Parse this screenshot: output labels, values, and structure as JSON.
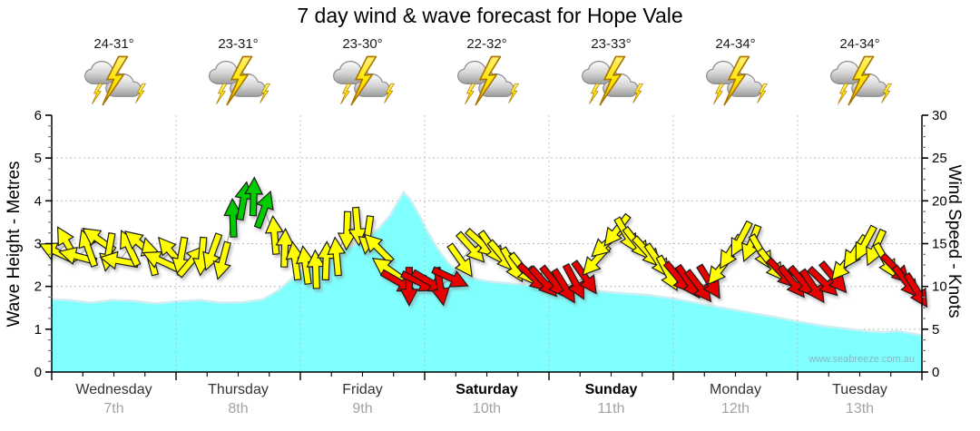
{
  "title": "7 day wind & wave forecast for Hope Vale",
  "watermark": "www.seabreeze.com.au",
  "days": [
    {
      "name": "Wednesday",
      "date": "7th",
      "temp": "24-31°",
      "icon": "thunderstorm",
      "weekend": false
    },
    {
      "name": "Thursday",
      "date": "8th",
      "temp": "23-31°",
      "icon": "thunderstorm",
      "weekend": false
    },
    {
      "name": "Friday",
      "date": "9th",
      "temp": "23-30°",
      "icon": "thunderstorm",
      "weekend": false
    },
    {
      "name": "Saturday",
      "date": "10th",
      "temp": "22-32°",
      "icon": "thunderstorm",
      "weekend": true
    },
    {
      "name": "Sunday",
      "date": "11th",
      "temp": "23-33°",
      "icon": "thunderstorm",
      "weekend": true
    },
    {
      "name": "Monday",
      "date": "12th",
      "temp": "24-34°",
      "icon": "thunderstorm",
      "weekend": false
    },
    {
      "name": "Tuesday",
      "date": "13th",
      "temp": "24-34°",
      "icon": "thunderstorm",
      "weekend": false
    }
  ],
  "chart_data": {
    "type": "area+wind-arrows",
    "title": "7 day wind & wave forecast for Hope Vale",
    "x_unit": "days (0 = Wednesday 7th 00:00, 7 = end of Tuesday 13th)",
    "grid": {
      "h_lines_metres": [
        1,
        2,
        3,
        4,
        5
      ],
      "v_lines_day_boundaries": [
        1,
        2,
        3,
        4,
        5,
        6
      ],
      "style": "dotted"
    },
    "left_axis": {
      "label": "Wave Height - Metres",
      "min": 0,
      "max": 6,
      "ticks": [
        0,
        1,
        2,
        3,
        4,
        5,
        6
      ],
      "minor_step": 0.25
    },
    "right_axis": {
      "label": "Wind Speed - Knots",
      "min": 0,
      "max": 30,
      "ticks": [
        0,
        5,
        10,
        15,
        20,
        25,
        30
      ],
      "minor_step": 1.25
    },
    "wave_series": {
      "name": "Wave Height (metres)",
      "points": [
        [
          0,
          1.7
        ],
        [
          0.14,
          1.68
        ],
        [
          0.315,
          1.62
        ],
        [
          0.49,
          1.68
        ],
        [
          0.665,
          1.66
        ],
        [
          0.84,
          1.6
        ],
        [
          1.0,
          1.65
        ],
        [
          1.19,
          1.68
        ],
        [
          1.365,
          1.62
        ],
        [
          1.54,
          1.63
        ],
        [
          1.7,
          1.7
        ],
        [
          1.82,
          1.9
        ],
        [
          1.9,
          2.1
        ],
        [
          2.0,
          2.35
        ],
        [
          2.1,
          2.6
        ],
        [
          2.2,
          2.75
        ],
        [
          2.31,
          2.85
        ],
        [
          2.42,
          2.95
        ],
        [
          2.52,
          3.1
        ],
        [
          2.63,
          3.35
        ],
        [
          2.72,
          3.65
        ],
        [
          2.77,
          3.9
        ],
        [
          2.83,
          4.2
        ],
        [
          2.88,
          4.05
        ],
        [
          2.95,
          3.7
        ],
        [
          3.02,
          3.3
        ],
        [
          3.1,
          2.9
        ],
        [
          3.19,
          2.55
        ],
        [
          3.28,
          2.32
        ],
        [
          3.38,
          2.2
        ],
        [
          3.5,
          2.12
        ],
        [
          3.71,
          2.06
        ],
        [
          4.0,
          2.0
        ],
        [
          4.27,
          1.92
        ],
        [
          4.55,
          1.85
        ],
        [
          4.8,
          1.8
        ],
        [
          5.0,
          1.72
        ],
        [
          5.25,
          1.58
        ],
        [
          5.46,
          1.47
        ],
        [
          5.67,
          1.36
        ],
        [
          5.88,
          1.25
        ],
        [
          6.0,
          1.18
        ],
        [
          6.2,
          1.08
        ],
        [
          6.37,
          1.02
        ],
        [
          6.55,
          0.96
        ],
        [
          6.69,
          0.93
        ],
        [
          6.8,
          0.96
        ],
        [
          6.92,
          0.9
        ],
        [
          7.0,
          0.86
        ]
      ]
    },
    "wind_series": {
      "name": "Wind Speed (knots) with direction arrows",
      "arrows_per_day": 12,
      "arrow_format": "[knots, rotation_deg_cw_from_east, color]",
      "days": [
        {
          "day": 0,
          "arrows": [
            [
              14,
              205,
              "y"
            ],
            [
              15,
              240,
              "y"
            ],
            [
              13.5,
              195,
              "y"
            ],
            [
              14.5,
              250,
              "y"
            ],
            [
              15.5,
              215,
              "y"
            ],
            [
              14,
              100,
              "y"
            ],
            [
              13,
              190,
              "y"
            ],
            [
              14.5,
              245,
              "y"
            ],
            [
              15,
              220,
              "y"
            ],
            [
              13.5,
              255,
              "y"
            ],
            [
              13,
              205,
              "y"
            ],
            [
              14,
              230,
              "y"
            ]
          ]
        },
        {
          "day": 1,
          "arrows": [
            [
              13.5,
              100,
              "y"
            ],
            [
              13,
              310,
              "y"
            ],
            [
              13.5,
              95,
              "y"
            ],
            [
              14,
              110,
              "y"
            ],
            [
              13,
              105,
              "y"
            ],
            [
              18,
              268,
              "g"
            ],
            [
              20,
              280,
              "g"
            ],
            [
              20.5,
              272,
              "g"
            ],
            [
              19,
              290,
              "g"
            ],
            [
              16,
              265,
              "y"
            ],
            [
              14.5,
              272,
              "y"
            ],
            [
              13,
              262,
              "y"
            ]
          ]
        },
        {
          "day": 2,
          "arrows": [
            [
              12.5,
              262,
              "y"
            ],
            [
              12,
              268,
              "y"
            ],
            [
              13,
              272,
              "y"
            ],
            [
              13.5,
              265,
              "y"
            ],
            [
              16.5,
              92,
              "y"
            ],
            [
              17,
              85,
              "y"
            ],
            [
              16,
              98,
              "y"
            ],
            [
              14.5,
              225,
              "y"
            ],
            [
              12,
              215,
              "y"
            ],
            [
              10.5,
              30,
              "r"
            ],
            [
              10,
              90,
              "r"
            ],
            [
              10.5,
              25,
              "r"
            ]
          ]
        },
        {
          "day": 3,
          "arrows": [
            [
              10.5,
              30,
              "r"
            ],
            [
              10,
              80,
              "r"
            ],
            [
              11,
              25,
              "r"
            ],
            [
              13,
              55,
              "y"
            ],
            [
              14.5,
              48,
              "y"
            ],
            [
              15,
              42,
              "y"
            ],
            [
              14.5,
              55,
              "y"
            ],
            [
              13.5,
              50,
              "y"
            ],
            [
              12.5,
              60,
              "y"
            ],
            [
              12,
              52,
              "y"
            ],
            [
              11,
              42,
              "r"
            ],
            [
              10.5,
              48,
              "r"
            ]
          ]
        },
        {
          "day": 4,
          "arrows": [
            [
              10.5,
              52,
              "r"
            ],
            [
              10,
              58,
              "r"
            ],
            [
              10.5,
              62,
              "r"
            ],
            [
              11,
              55,
              "r"
            ],
            [
              13,
              132,
              "y"
            ],
            [
              15,
              138,
              "y"
            ],
            [
              16.5,
              128,
              "y"
            ],
            [
              16,
              60,
              "y"
            ],
            [
              15,
              52,
              "y"
            ],
            [
              14,
              48,
              "y"
            ],
            [
              13,
              56,
              "y"
            ],
            [
              11.5,
              62,
              "y"
            ]
          ]
        },
        {
          "day": 5,
          "arrows": [
            [
              11,
              50,
              "r"
            ],
            [
              10.5,
              56,
              "r"
            ],
            [
              10,
              52,
              "r"
            ],
            [
              10.5,
              58,
              "r"
            ],
            [
              12,
              128,
              "y"
            ],
            [
              14,
              122,
              "y"
            ],
            [
              15.5,
              118,
              "y"
            ],
            [
              15,
              112,
              "y"
            ],
            [
              14,
              60,
              "y"
            ],
            [
              12.5,
              52,
              "y"
            ],
            [
              11.5,
              46,
              "r"
            ],
            [
              10.5,
              52,
              "r"
            ]
          ]
        },
        {
          "day": 6,
          "arrows": [
            [
              10.5,
              50,
              "r"
            ],
            [
              10,
              56,
              "r"
            ],
            [
              10.5,
              44,
              "r"
            ],
            [
              11,
              50,
              "r"
            ],
            [
              12.5,
              130,
              "y"
            ],
            [
              14,
              124,
              "y"
            ],
            [
              15,
              118,
              "y"
            ],
            [
              14.5,
              114,
              "y"
            ],
            [
              13,
              60,
              "y"
            ],
            [
              12,
              46,
              "r"
            ],
            [
              10.5,
              52,
              "r"
            ],
            [
              9.5,
              58,
              "r"
            ]
          ]
        }
      ]
    },
    "colors": {
      "wave_fill": "#80FFFF",
      "wave_edge": "#CDEEF2",
      "arrow_yellow": "#FFFF00",
      "arrow_green": "#00CC00",
      "arrow_red": "#E60000",
      "arrow_outline": "#1a1a1a",
      "wind_line": "#999999",
      "grid": "#bdbdbd",
      "axis": "#000000"
    }
  }
}
